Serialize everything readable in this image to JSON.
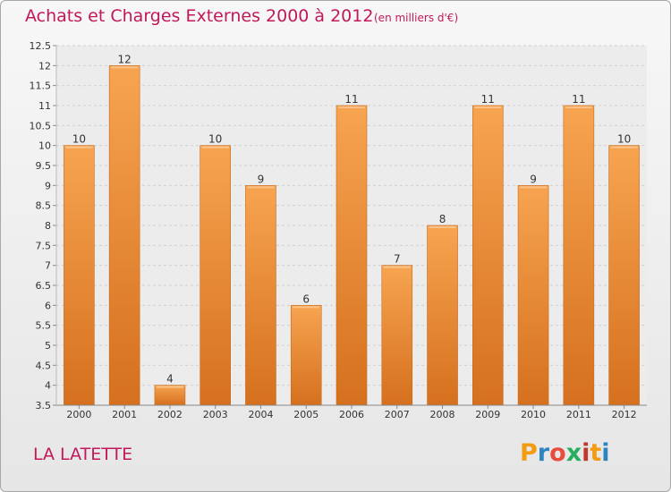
{
  "chart_data": {
    "type": "bar",
    "title": "Achats et Charges Externes 2000 à 2012",
    "subtitle": "(en milliers d'€)",
    "xlabel": "",
    "ylabel": "",
    "categories": [
      "2000",
      "2001",
      "2002",
      "2003",
      "2004",
      "2005",
      "2006",
      "2007",
      "2008",
      "2009",
      "2010",
      "2011",
      "2012"
    ],
    "values": [
      10,
      12,
      4,
      10,
      9,
      6,
      11,
      7,
      8,
      11,
      9,
      11,
      10
    ],
    "data_labels": [
      "10",
      "12",
      "4",
      "10",
      "9",
      "6",
      "11",
      "7",
      "8",
      "11",
      "9",
      "11",
      "10"
    ],
    "ylim": [
      3.5,
      12.5
    ],
    "yticks": [
      3.5,
      4,
      4.5,
      5,
      5.5,
      6,
      6.5,
      7,
      7.5,
      8,
      8.5,
      9,
      9.5,
      10,
      10.5,
      11,
      11.5,
      12,
      12.5
    ],
    "ytick_labels": [
      "3.5",
      "4",
      "4.5",
      "5",
      "5.5",
      "6",
      "6.5",
      "7",
      "7.5",
      "8",
      "8.5",
      "9",
      "9.5",
      "10",
      "10.5",
      "11",
      "11.5",
      "12",
      "12.5"
    ],
    "grid": true,
    "legend": "none",
    "bar_color": "#f0903a"
  },
  "commune": "LA LATETTE",
  "brand": {
    "letters": [
      "P",
      "r",
      "o",
      "x",
      "i",
      "t",
      "i"
    ],
    "colors": [
      "#f39c12",
      "#2e86c1",
      "#e74c3c",
      "#27ae60",
      "#c0392b",
      "#f39c12",
      "#2e86c1"
    ]
  }
}
